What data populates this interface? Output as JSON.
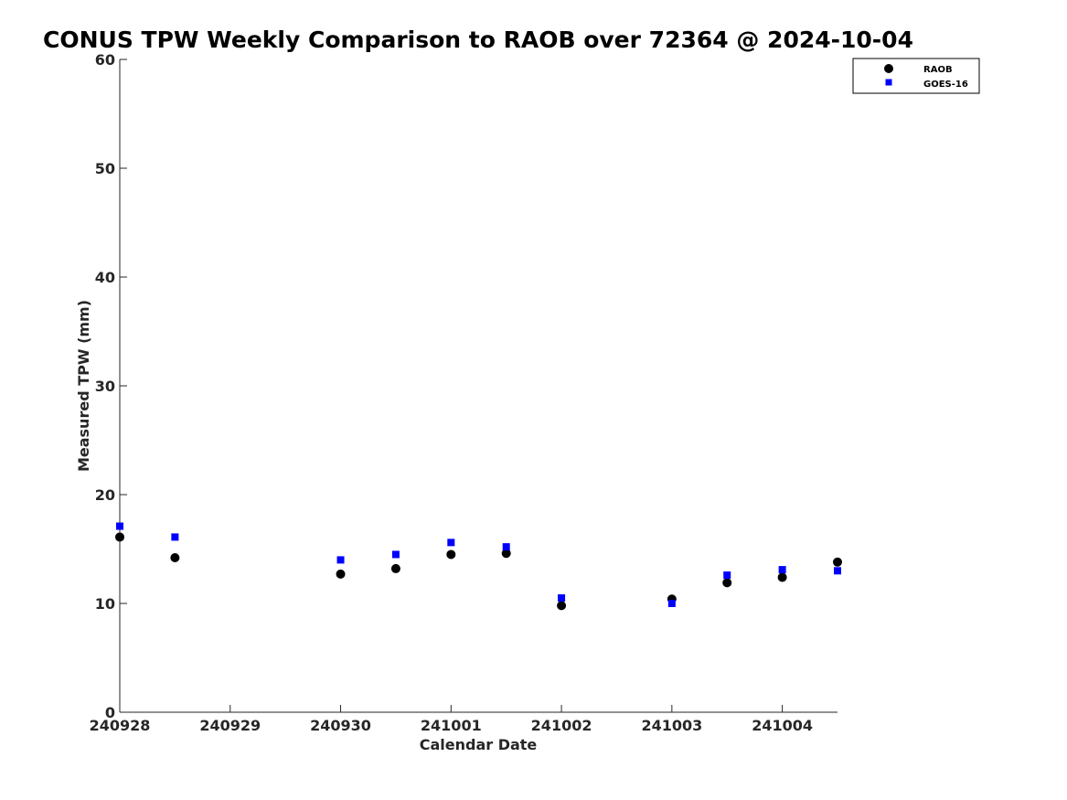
{
  "chart_data": {
    "type": "scatter",
    "title": "CONUS TPW Weekly Comparison to RAOB over 72364 @ 2024-10-04",
    "xlabel": "Calendar Date",
    "ylabel": "Measured TPW (mm)",
    "x_ticks": [
      "240928",
      "240929",
      "240930",
      "241001",
      "241002",
      "241003",
      "241004"
    ],
    "xlim": [
      "2024-09-28T00:00",
      "2024-10-04T12:00"
    ],
    "ylim": [
      0,
      60
    ],
    "y_ticks": [
      0,
      10,
      20,
      30,
      40,
      50,
      60
    ],
    "grid": false,
    "legend_position": "top-right",
    "series": [
      {
        "name": "RAOB",
        "marker": "circle",
        "color": "#000000",
        "points": [
          {
            "x": "2024-09-28T00:00",
            "y": 16.1
          },
          {
            "x": "2024-09-28T12:00",
            "y": 14.2
          },
          {
            "x": "2024-09-30T00:00",
            "y": 12.7
          },
          {
            "x": "2024-09-30T12:00",
            "y": 13.2
          },
          {
            "x": "2024-10-01T00:00",
            "y": 14.5
          },
          {
            "x": "2024-10-01T12:00",
            "y": 14.6
          },
          {
            "x": "2024-10-02T00:00",
            "y": 9.8
          },
          {
            "x": "2024-10-03T00:00",
            "y": 10.4
          },
          {
            "x": "2024-10-03T12:00",
            "y": 11.9
          },
          {
            "x": "2024-10-04T00:00",
            "y": 12.4
          },
          {
            "x": "2024-10-04T12:00",
            "y": 13.8
          }
        ]
      },
      {
        "name": "GOES-16",
        "marker": "square",
        "color": "#0000ff",
        "points": [
          {
            "x": "2024-09-28T00:00",
            "y": 17.1
          },
          {
            "x": "2024-09-28T12:00",
            "y": 16.1
          },
          {
            "x": "2024-09-30T00:00",
            "y": 14.0
          },
          {
            "x": "2024-09-30T12:00",
            "y": 14.5
          },
          {
            "x": "2024-10-01T00:00",
            "y": 15.6
          },
          {
            "x": "2024-10-01T12:00",
            "y": 15.2
          },
          {
            "x": "2024-10-02T00:00",
            "y": 10.5
          },
          {
            "x": "2024-10-03T00:00",
            "y": 10.0
          },
          {
            "x": "2024-10-03T12:00",
            "y": 12.6
          },
          {
            "x": "2024-10-04T00:00",
            "y": 13.1
          },
          {
            "x": "2024-10-04T12:00",
            "y": 13.0
          }
        ]
      }
    ]
  }
}
